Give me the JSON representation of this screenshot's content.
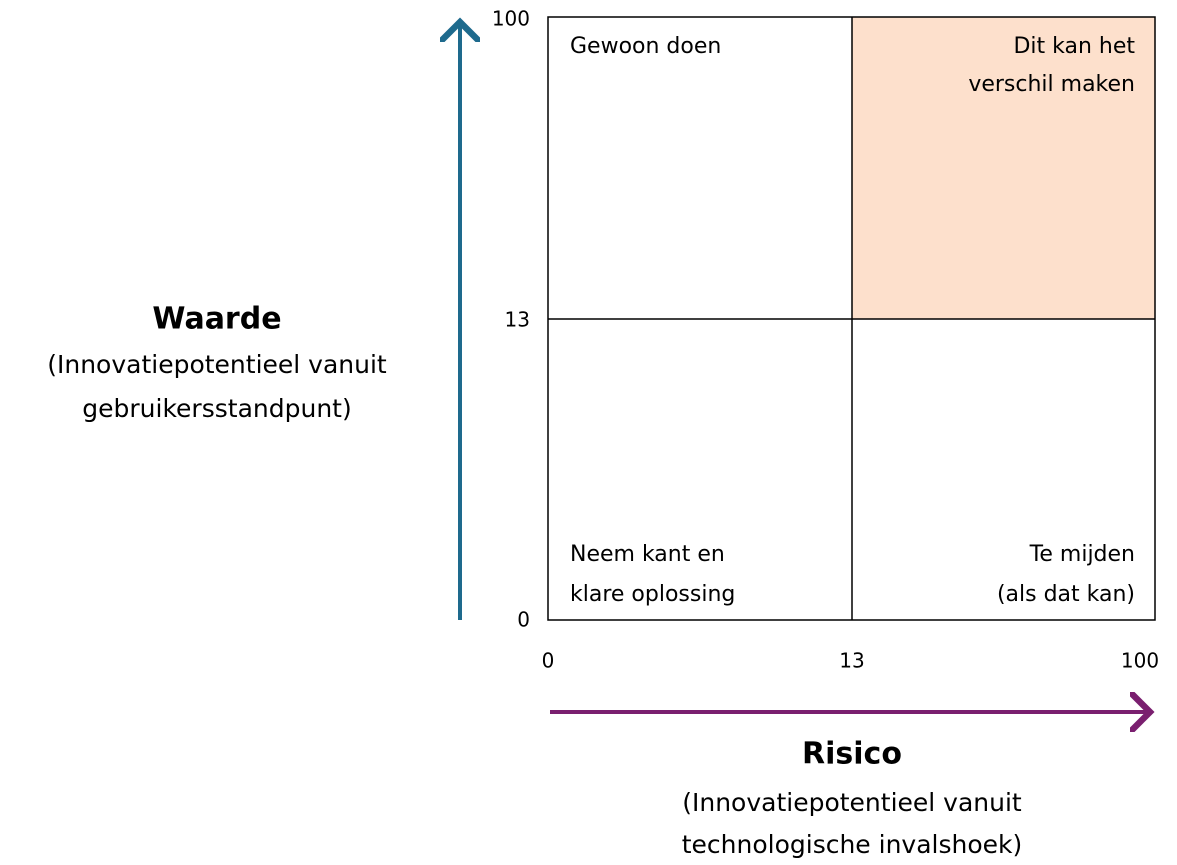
{
  "y_axis": {
    "title": "Waarde",
    "subtitle": [
      "(Innovatiepotentieel vanuit",
      "gebruikersstandpunt)"
    ],
    "ticks": [
      100,
      13,
      0
    ]
  },
  "x_axis": {
    "title": "Risico",
    "subtitle": [
      "(Innovatiepotentieel vanuit",
      "technologische invalshoek)"
    ],
    "ticks": [
      0,
      13,
      100
    ]
  },
  "quadrants": {
    "top_left": [
      "Gewoon doen"
    ],
    "top_right": [
      "Dit kan het",
      "verschil maken"
    ],
    "bottom_left": [
      "Neem kant en",
      "klare oplossing"
    ],
    "bottom_right": [
      "Te mijden",
      "(als dat kan)"
    ]
  }
}
